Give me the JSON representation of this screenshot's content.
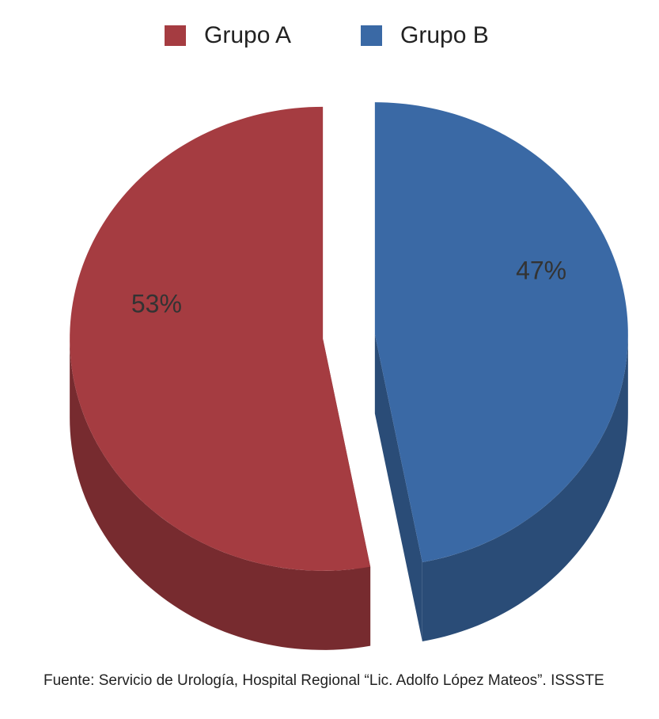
{
  "chart_data": {
    "type": "pie",
    "categories": [
      "Grupo A",
      "Grupo B"
    ],
    "values": [
      53,
      47
    ],
    "value_labels": [
      "53%",
      "47%"
    ],
    "colors": [
      "#a53c41",
      "#3a69a5"
    ],
    "legend": "top",
    "three_d": true,
    "exploded": true,
    "source": "Fuente: Servicio de Urología, Hospital Regional “Lic. Adolfo López Mateos”. ISSSTE"
  }
}
